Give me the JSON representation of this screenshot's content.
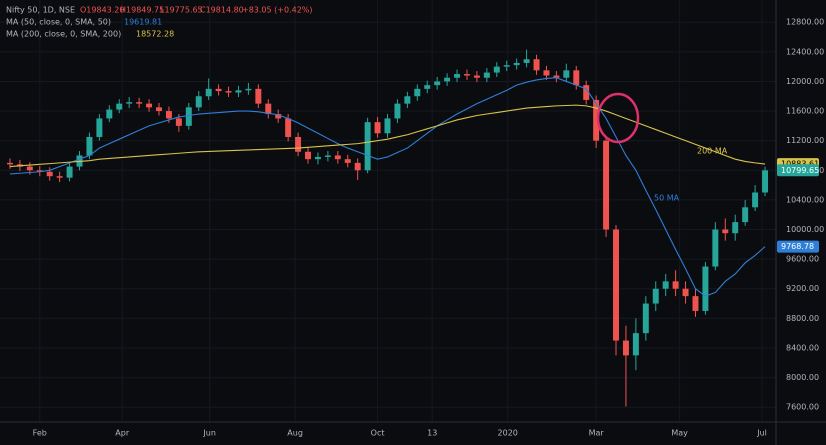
{
  "chart_data": {
    "type": "candlestick",
    "header": {
      "symbol": "Nifty 50, 1D, NSE",
      "ohlc": [
        "O19843.20",
        "H19849.75",
        "L19775.65",
        "C19814.80",
        "+83.05 (+0.42%)"
      ],
      "ma50_label": "MA (50, close, 0, SMA, 50)",
      "ma50_value": "19619.81",
      "ma200_label": "MA (200, close, 0, SMA, 200)",
      "ma200_value": "18572.28"
    },
    "annotations": [
      "200 MA",
      "50 MA"
    ],
    "up_color": "#26a69a",
    "down_color": "#ef5350",
    "grid": true,
    "open": [
      10900,
      10880,
      10850,
      10800,
      10780,
      10720,
      10700,
      10850,
      11000,
      11250,
      11500,
      11620,
      11700,
      11720,
      11700,
      11650,
      11600,
      11500,
      11400,
      11650,
      11800,
      11900,
      11870,
      11850,
      11880,
      11900,
      11700,
      11560,
      11500,
      11250,
      11050,
      10950,
      10980,
      11000,
      10950,
      10900,
      10800,
      11450,
      11300,
      11500,
      11700,
      11800,
      11900,
      11950,
      12000,
      12050,
      12100,
      12080,
      12050,
      12120,
      12200,
      12220,
      12250,
      12300,
      12150,
      12080,
      12050,
      12150,
      11950,
      11750,
      11200,
      10000,
      8500,
      8300,
      8600,
      9000,
      9200,
      9300,
      9200,
      9100,
      8900,
      9500,
      10000,
      9950,
      10100,
      10300,
      10500
    ],
    "high": [
      10960,
      10940,
      10910,
      10860,
      10840,
      10780,
      10910,
      11060,
      11310,
      11560,
      11680,
      11760,
      11790,
      11780,
      11760,
      11710,
      11660,
      11560,
      11710,
      11870,
      12040,
      11960,
      11930,
      11940,
      11980,
      11960,
      11760,
      11620,
      11560,
      11310,
      11110,
      11040,
      11060,
      11060,
      11010,
      10960,
      11510,
      11520,
      11560,
      11760,
      11860,
      11960,
      12010,
      12060,
      12110,
      12160,
      12160,
      12140,
      12180,
      12260,
      12280,
      12310,
      12430,
      12360,
      12210,
      12140,
      12240,
      12210,
      12010,
      11810,
      11260,
      10060,
      8700,
      8800,
      9100,
      9300,
      9400,
      9450,
      9300,
      9200,
      9560,
      10100,
      10150,
      10200,
      10400,
      10600,
      10850
    ],
    "low": [
      10820,
      10790,
      10740,
      10720,
      10660,
      10640,
      10650,
      10800,
      10950,
      11200,
      11450,
      11570,
      11640,
      11640,
      11590,
      11540,
      11440,
      11320,
      11350,
      11600,
      11750,
      11810,
      11790,
      11790,
      11820,
      11640,
      11500,
      11440,
      11190,
      10990,
      10890,
      10880,
      10920,
      10890,
      10840,
      10670,
      10760,
      11240,
      11240,
      11440,
      11640,
      11740,
      11840,
      11890,
      11940,
      11990,
      12020,
      11990,
      11990,
      12060,
      12140,
      12160,
      12190,
      12090,
      12020,
      11990,
      11990,
      11890,
      11690,
      11100,
      9900,
      8300,
      7610,
      8100,
      8500,
      8900,
      9100,
      9100,
      9000,
      8820,
      8850,
      9450,
      9850,
      9850,
      10050,
      10250,
      10450
    ],
    "close": [
      10880,
      10850,
      10800,
      10780,
      10720,
      10700,
      10850,
      11000,
      11250,
      11500,
      11620,
      11700,
      11720,
      11700,
      11650,
      11600,
      11500,
      11400,
      11650,
      11800,
      11900,
      11870,
      11850,
      11880,
      11900,
      11700,
      11560,
      11500,
      11250,
      11050,
      10950,
      10980,
      11000,
      10950,
      10900,
      10800,
      11450,
      11300,
      11500,
      11700,
      11800,
      11900,
      11950,
      12000,
      12050,
      12100,
      12080,
      12050,
      12120,
      12200,
      12220,
      12250,
      12300,
      12150,
      12080,
      12050,
      12150,
      11950,
      11750,
      11200,
      10000,
      8500,
      8300,
      8600,
      9000,
      9200,
      9300,
      9200,
      9100,
      8900,
      9500,
      10000,
      9950,
      10100,
      10300,
      10500,
      10799.65
    ],
    "series": [
      {
        "name": "MA (50)",
        "color": "#2f7fd8",
        "values": [
          10750,
          10760,
          10770,
          10780,
          10800,
          10850,
          10900,
          10950,
          11000,
          11100,
          11160,
          11220,
          11280,
          11340,
          11400,
          11440,
          11480,
          11520,
          11540,
          11560,
          11570,
          11580,
          11590,
          11600,
          11600,
          11590,
          11570,
          11550,
          11500,
          11440,
          11370,
          11300,
          11230,
          11160,
          11100,
          11050,
          11000,
          10950,
          10980,
          11040,
          11100,
          11200,
          11300,
          11400,
          11480,
          11560,
          11630,
          11700,
          11760,
          11820,
          11880,
          11950,
          11990,
          12020,
          12040,
          12050,
          12000,
          11950,
          11900,
          11700,
          11500,
          11250,
          11000,
          10800,
          10530,
          10270,
          10000,
          9730,
          9470,
          9200,
          9100,
          9150,
          9300,
          9400,
          9550,
          9650,
          9768.78
        ]
      },
      {
        "name": "MA (200)",
        "color": "#d8c44a",
        "values": [
          10850,
          10860,
          10870,
          10880,
          10890,
          10900,
          10910,
          10920,
          10930,
          10950,
          10960,
          10970,
          10980,
          10990,
          11000,
          11010,
          11020,
          11030,
          11040,
          11050,
          11055,
          11060,
          11065,
          11070,
          11075,
          11080,
          11085,
          11090,
          11095,
          11100,
          11110,
          11120,
          11130,
          11140,
          11150,
          11160,
          11180,
          11200,
          11220,
          11250,
          11280,
          11320,
          11360,
          11400,
          11440,
          11480,
          11510,
          11540,
          11560,
          11580,
          11600,
          11620,
          11640,
          11650,
          11660,
          11670,
          11675,
          11680,
          11670,
          11640,
          11600,
          11550,
          11500,
          11450,
          11400,
          11350,
          11300,
          11250,
          11200,
          11150,
          11100,
          11050,
          11000,
          10950,
          10920,
          10900,
          10883.61
        ]
      }
    ],
    "xlim": [
      0,
      77
    ],
    "xticks": [
      {
        "value": 3.5,
        "label": "Feb"
      },
      {
        "value": 11.8,
        "label": "Apr"
      },
      {
        "value": 20.6,
        "label": "Jun"
      },
      {
        "value": 29.2,
        "label": "Aug"
      },
      {
        "value": 37.5,
        "label": "Oct"
      },
      {
        "value": 43,
        "label": "13"
      },
      {
        "value": 50.6,
        "label": "2020"
      },
      {
        "value": 59.5,
        "label": "Mar"
      },
      {
        "value": 67.9,
        "label": "May"
      },
      {
        "value": 76.2,
        "label": "Jul"
      }
    ],
    "ylim": [
      7400,
      13100
    ],
    "yticks": [
      {
        "value": 7600,
        "label": "7600.00"
      },
      {
        "value": 8000,
        "label": "8000.00"
      },
      {
        "value": 8400,
        "label": "8400.00"
      },
      {
        "value": 8800,
        "label": "8800.00"
      },
      {
        "value": 9200,
        "label": "9200.00"
      },
      {
        "value": 9600,
        "label": "9600.00"
      },
      {
        "value": 10000,
        "label": "10000.00"
      },
      {
        "value": 10400,
        "label": "10400.00"
      },
      {
        "value": 10800,
        "label": "10800.00"
      },
      {
        "value": 11200,
        "label": "11200.00"
      },
      {
        "value": 11600,
        "label": "11600.00"
      },
      {
        "value": 12000,
        "label": "12000.00"
      },
      {
        "value": 12400,
        "label": "12400.00"
      },
      {
        "value": 12800,
        "label": "12800.00"
      }
    ]
  }
}
